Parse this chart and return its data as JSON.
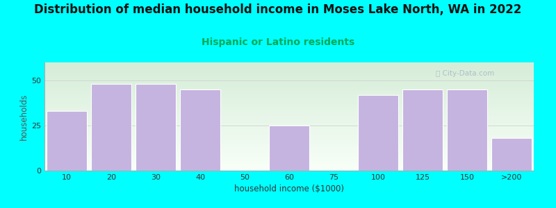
{
  "title": "Distribution of median household income in Moses Lake North, WA in 2022",
  "subtitle": "Hispanic or Latino residents",
  "xlabel": "household income ($1000)",
  "ylabel": "households",
  "background_color": "#00FFFF",
  "bar_color": "#c5b3e0",
  "bar_edge_color": "#ffffff",
  "categories": [
    "10",
    "20",
    "30",
    "40",
    "50",
    "60",
    "75",
    "100",
    "125",
    "150",
    ">200"
  ],
  "values": [
    33,
    48,
    48,
    45,
    0,
    25,
    0,
    42,
    45,
    45,
    18
  ],
  "ylim": [
    0,
    60
  ],
  "yticks": [
    0,
    25,
    50
  ],
  "title_fontsize": 12,
  "subtitle_fontsize": 10,
  "subtitle_color": "#00aa55",
  "axis_label_fontsize": 8.5,
  "tick_fontsize": 8,
  "watermark_text": "ⓘ City-Data.com",
  "watermark_color": "#aab5c5",
  "title_color": "#111111",
  "grad_top": "#d6edd8",
  "grad_bottom": "#f8fff8"
}
